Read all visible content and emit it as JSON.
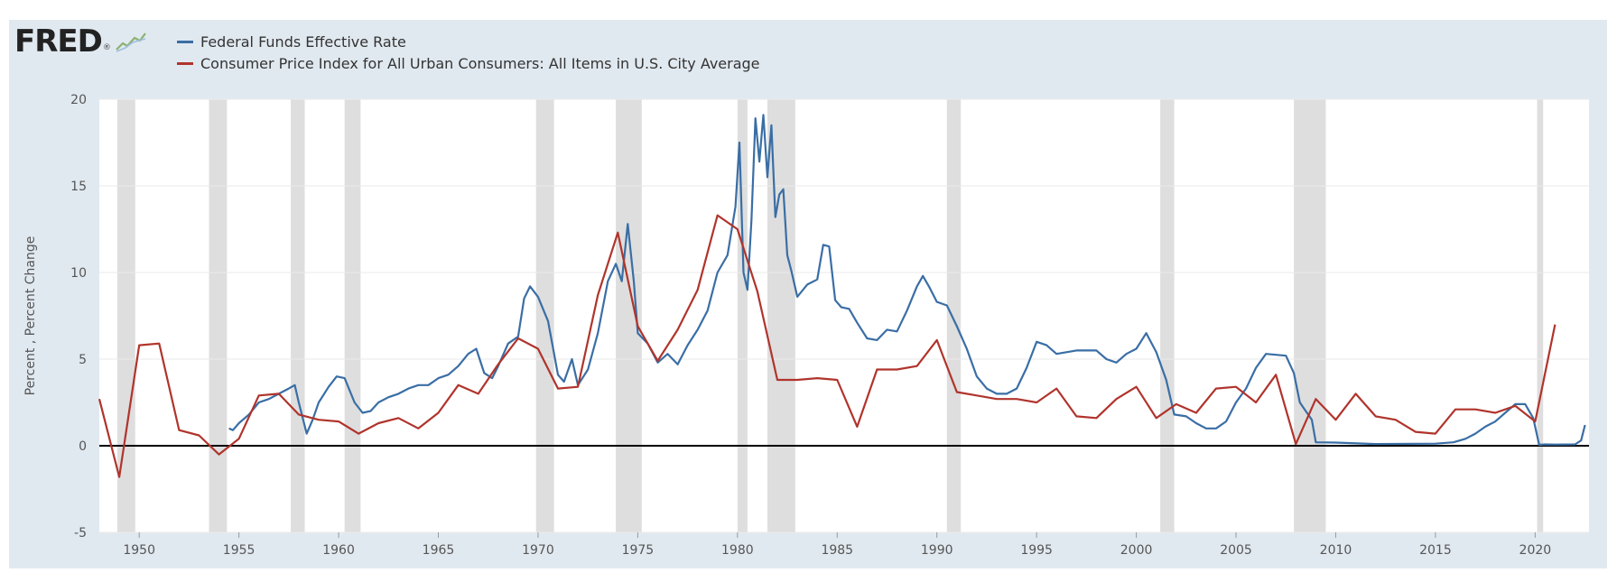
{
  "branding": {
    "logo_text": "FRED",
    "logo_mark": "®"
  },
  "colors": {
    "fed_funds": "#3a6ea5",
    "cpi": "#b0342c",
    "recession": "#dedede",
    "background": "#e1e9f0",
    "zero_line": "#000000",
    "grid": "#eaeaea"
  },
  "chart_data": {
    "type": "line",
    "title": "",
    "xlabel": "",
    "ylabel": "Percent , Percent Change",
    "xlim": [
      1948,
      2022.7
    ],
    "ylim": [
      -5,
      20
    ],
    "y_ticks": [
      -5,
      0,
      5,
      10,
      15,
      20
    ],
    "x_ticks": [
      1950,
      1955,
      1960,
      1965,
      1970,
      1975,
      1980,
      1985,
      1990,
      1995,
      2000,
      2005,
      2010,
      2015,
      2020
    ],
    "grid": true,
    "legend_position": "top-left",
    "recessions": [
      [
        1948.9,
        1949.8
      ],
      [
        1953.5,
        1954.4
      ],
      [
        1957.6,
        1958.3
      ],
      [
        1960.3,
        1961.1
      ],
      [
        1969.9,
        1970.8
      ],
      [
        1973.9,
        1975.2
      ],
      [
        1980.0,
        1980.5
      ],
      [
        1981.5,
        1982.9
      ],
      [
        1990.5,
        1991.2
      ],
      [
        2001.2,
        2001.9
      ],
      [
        2007.9,
        2009.5
      ],
      [
        2020.1,
        2020.4
      ]
    ],
    "series": [
      {
        "name": "Federal Funds Effective Rate",
        "color": "#3a6ea5",
        "x": [
          1954.5,
          1954.7,
          1955.0,
          1955.5,
          1956.0,
          1956.5,
          1957.0,
          1957.5,
          1957.8,
          1958.0,
          1958.4,
          1958.7,
          1959.0,
          1959.5,
          1959.9,
          1960.3,
          1960.8,
          1961.2,
          1961.6,
          1962.0,
          1962.5,
          1963.0,
          1963.5,
          1964.0,
          1964.5,
          1965.0,
          1965.5,
          1966.0,
          1966.5,
          1966.9,
          1967.3,
          1967.7,
          1968.0,
          1968.5,
          1969.0,
          1969.3,
          1969.6,
          1970.0,
          1970.5,
          1971.0,
          1971.3,
          1971.7,
          1972.0,
          1972.5,
          1973.0,
          1973.5,
          1973.9,
          1974.2,
          1974.5,
          1974.8,
          1975.0,
          1975.5,
          1976.0,
          1976.5,
          1977.0,
          1977.5,
          1978.0,
          1978.5,
          1979.0,
          1979.5,
          1979.9,
          1980.1,
          1980.3,
          1980.5,
          1980.7,
          1980.9,
          1981.1,
          1981.3,
          1981.5,
          1981.7,
          1981.9,
          1982.1,
          1982.3,
          1982.5,
          1982.7,
          1983.0,
          1983.5,
          1984.0,
          1984.3,
          1984.6,
          1984.9,
          1985.2,
          1985.6,
          1986.0,
          1986.5,
          1987.0,
          1987.5,
          1988.0,
          1988.5,
          1989.0,
          1989.3,
          1989.6,
          1990.0,
          1990.5,
          1991.0,
          1991.5,
          1992.0,
          1992.5,
          1993.0,
          1993.5,
          1994.0,
          1994.5,
          1995.0,
          1995.5,
          1996.0,
          1997.0,
          1998.0,
          1998.5,
          1999.0,
          1999.5,
          2000.0,
          2000.5,
          2001.0,
          2001.5,
          2001.9,
          2002.5,
          2003.0,
          2003.5,
          2004.0,
          2004.5,
          2005.0,
          2005.5,
          2006.0,
          2006.5,
          2007.0,
          2007.5,
          2007.9,
          2008.2,
          2008.5,
          2008.8,
          2009.0,
          2010.0,
          2012.0,
          2015.0,
          2015.9,
          2016.5,
          2017.0,
          2017.5,
          2018.0,
          2018.5,
          2019.0,
          2019.5,
          2019.9,
          2020.2,
          2020.5,
          2021.0,
          2022.0,
          2022.3,
          2022.5
        ],
        "values": [
          1.0,
          0.9,
          1.3,
          1.8,
          2.5,
          2.7,
          3.0,
          3.3,
          3.5,
          2.5,
          0.7,
          1.5,
          2.5,
          3.4,
          4.0,
          3.9,
          2.5,
          1.9,
          2.0,
          2.5,
          2.8,
          3.0,
          3.3,
          3.5,
          3.5,
          3.9,
          4.1,
          4.6,
          5.3,
          5.6,
          4.2,
          3.9,
          4.6,
          5.9,
          6.3,
          8.5,
          9.2,
          8.6,
          7.2,
          4.1,
          3.7,
          5.0,
          3.5,
          4.4,
          6.5,
          9.5,
          10.5,
          9.5,
          12.8,
          9.5,
          6.5,
          5.9,
          4.8,
          5.3,
          4.7,
          5.8,
          6.7,
          7.8,
          10.0,
          11.0,
          13.8,
          17.5,
          10.0,
          9.0,
          13.0,
          18.9,
          16.4,
          19.1,
          15.5,
          18.5,
          13.2,
          14.5,
          14.8,
          11.0,
          10.1,
          8.6,
          9.3,
          9.6,
          11.6,
          11.5,
          8.4,
          8.0,
          7.9,
          7.1,
          6.2,
          6.1,
          6.7,
          6.6,
          7.8,
          9.2,
          9.8,
          9.2,
          8.3,
          8.1,
          6.9,
          5.6,
          4.0,
          3.3,
          3.0,
          3.0,
          3.3,
          4.5,
          6.0,
          5.8,
          5.3,
          5.5,
          5.5,
          5.0,
          4.8,
          5.3,
          5.6,
          6.5,
          5.4,
          3.8,
          1.8,
          1.7,
          1.3,
          1.0,
          1.0,
          1.4,
          2.5,
          3.3,
          4.5,
          5.3,
          5.25,
          5.2,
          4.2,
          2.5,
          2.0,
          1.5,
          0.2,
          0.18,
          0.1,
          0.12,
          0.2,
          0.4,
          0.7,
          1.1,
          1.4,
          1.9,
          2.4,
          2.4,
          1.6,
          0.05,
          0.08,
          0.07,
          0.08,
          0.3,
          1.2
        ]
      },
      {
        "name": "Consumer Price Index for All Urban Consumers: All Items in U.S. City Average",
        "color": "#b0342c",
        "x": [
          1948.0,
          1949.0,
          1950.0,
          1951.0,
          1952.0,
          1953.0,
          1954.0,
          1955.0,
          1956.0,
          1957.0,
          1958.0,
          1959.0,
          1960.0,
          1961.0,
          1962.0,
          1963.0,
          1964.0,
          1965.0,
          1966.0,
          1967.0,
          1968.0,
          1969.0,
          1970.0,
          1971.0,
          1972.0,
          1973.0,
          1974.0,
          1975.0,
          1976.0,
          1977.0,
          1978.0,
          1979.0,
          1980.0,
          1981.0,
          1982.0,
          1983.0,
          1984.0,
          1985.0,
          1986.0,
          1987.0,
          1988.0,
          1989.0,
          1990.0,
          1991.0,
          1992.0,
          1993.0,
          1994.0,
          1995.0,
          1996.0,
          1997.0,
          1998.0,
          1999.0,
          2000.0,
          2001.0,
          2002.0,
          2003.0,
          2004.0,
          2005.0,
          2006.0,
          2007.0,
          2008.0,
          2009.0,
          2010.0,
          2011.0,
          2012.0,
          2013.0,
          2014.0,
          2015.0,
          2016.0,
          2017.0,
          2018.0,
          2019.0,
          2020.0,
          2021.0
        ],
        "values": [
          2.7,
          -1.8,
          5.8,
          5.9,
          0.9,
          0.6,
          -0.5,
          0.4,
          2.9,
          3.0,
          1.8,
          1.5,
          1.4,
          0.7,
          1.3,
          1.6,
          1.0,
          1.9,
          3.5,
          3.0,
          4.7,
          6.2,
          5.6,
          3.3,
          3.4,
          8.7,
          12.3,
          6.9,
          4.9,
          6.7,
          9.0,
          13.3,
          12.5,
          8.9,
          3.8,
          3.8,
          3.9,
          3.8,
          1.1,
          4.4,
          4.4,
          4.6,
          6.1,
          3.1,
          2.9,
          2.7,
          2.7,
          2.5,
          3.3,
          1.7,
          1.6,
          2.7,
          3.4,
          1.6,
          2.4,
          1.9,
          3.3,
          3.4,
          2.5,
          4.1,
          0.1,
          2.7,
          1.5,
          3.0,
          1.7,
          1.5,
          0.8,
          0.7,
          2.1,
          2.1,
          1.9,
          2.3,
          1.4,
          7.0
        ]
      }
    ]
  }
}
